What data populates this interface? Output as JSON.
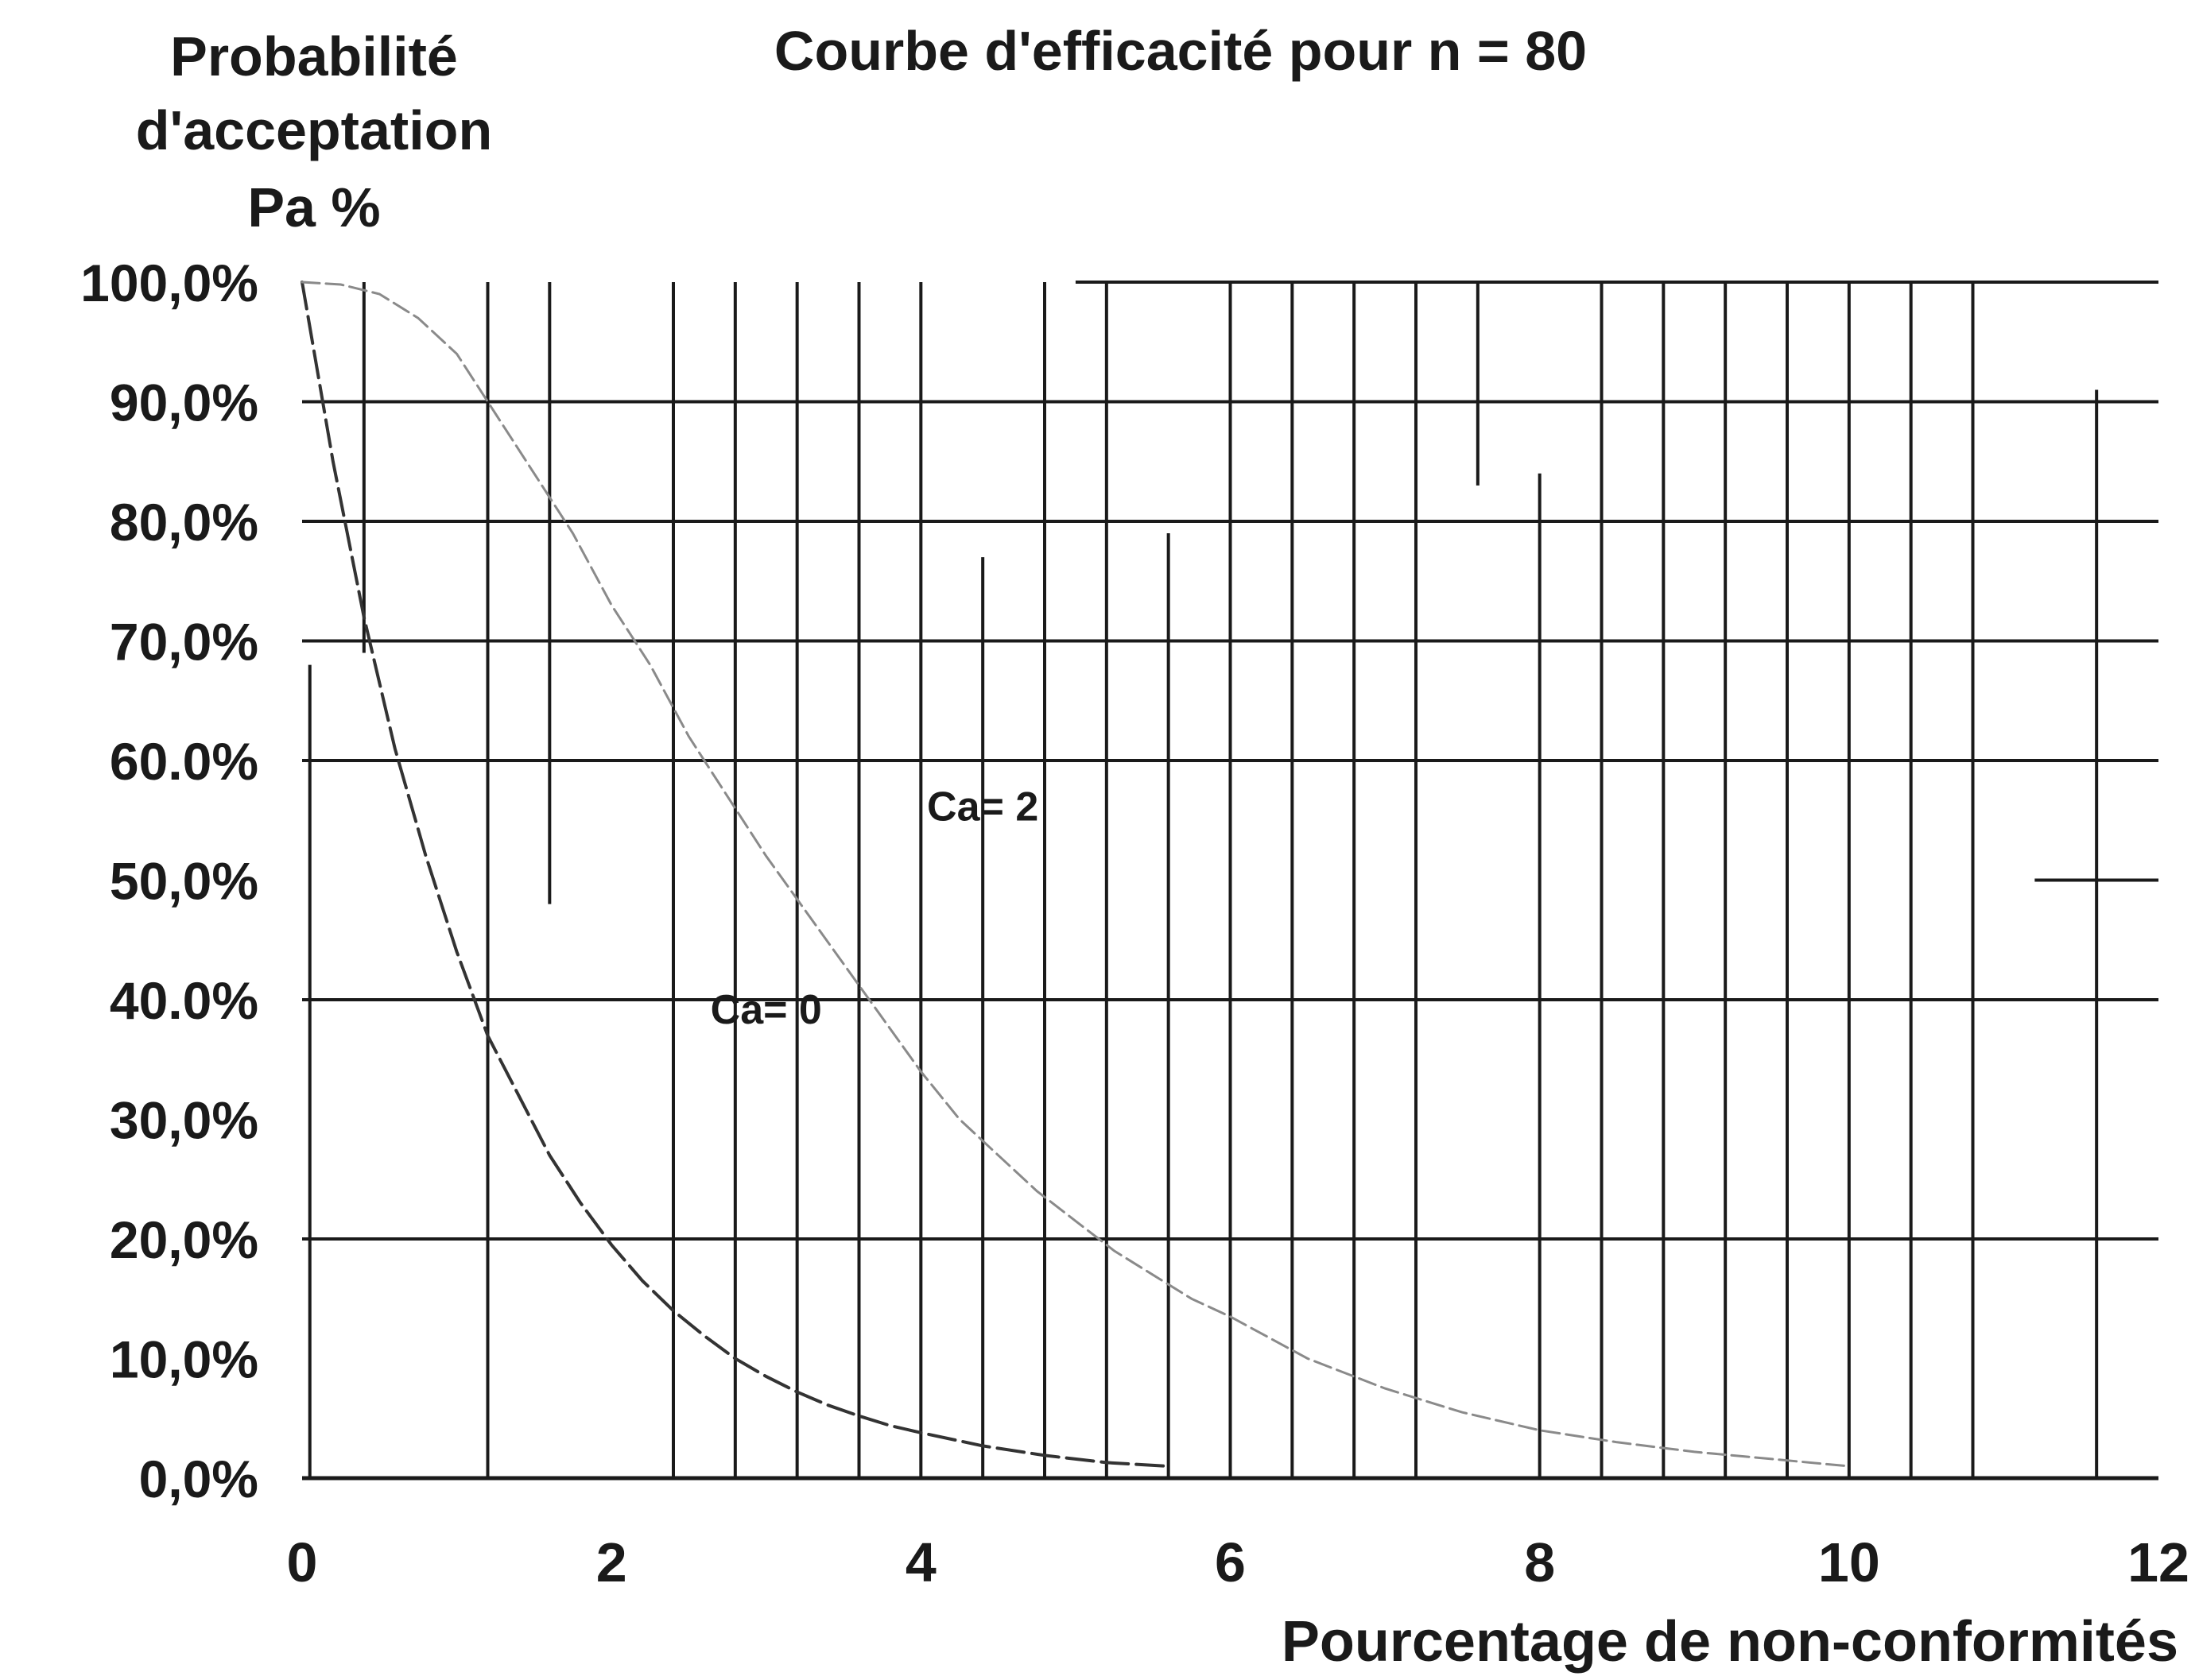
{
  "chart_data": {
    "type": "line",
    "title": "Courbe d'efficacité pour n = 80",
    "ylabel": [
      "Probabilité",
      "d'acceptation",
      "Pa %"
    ],
    "xlabel": "Pourcentage de non-conformités",
    "xlim": [
      0,
      12
    ],
    "ylim": [
      0,
      100
    ],
    "x_ticks": [
      0,
      2,
      4,
      6,
      8,
      10,
      12
    ],
    "x_tick_labels": [
      "0",
      "2",
      "4",
      "6",
      "8",
      "10",
      "12"
    ],
    "y_ticks": [
      0,
      10,
      20,
      30,
      40,
      50,
      60,
      70,
      80,
      90,
      100
    ],
    "y_tick_labels": [
      "0,0%",
      "10,0%",
      "20,0%",
      "30,0%",
      "40.0%",
      "50,0%",
      "60.0%",
      "70,0%",
      "80,0%",
      "90,0%",
      "100,0%"
    ],
    "grid": true,
    "vertical_gridlines": [
      {
        "x": 0.05,
        "y0": 0,
        "y1": 68
      },
      {
        "x": 0.4,
        "y0": 69,
        "y1": 100
      },
      {
        "x": 1.2,
        "y0": 0,
        "y1": 100
      },
      {
        "x": 1.6,
        "y0": 48,
        "y1": 100
      },
      {
        "x": 2.4,
        "y0": 0,
        "y1": 100
      },
      {
        "x": 2.8,
        "y0": 0,
        "y1": 100
      },
      {
        "x": 3.2,
        "y0": 0,
        "y1": 100
      },
      {
        "x": 3.6,
        "y0": 0,
        "y1": 100
      },
      {
        "x": 4.0,
        "y0": 0,
        "y1": 100
      },
      {
        "x": 4.4,
        "y0": 0,
        "y1": 77
      },
      {
        "x": 4.8,
        "y0": 0,
        "y1": 100
      },
      {
        "x": 5.2,
        "y0": 0,
        "y1": 100
      },
      {
        "x": 5.6,
        "y0": 0,
        "y1": 79
      },
      {
        "x": 6.0,
        "y0": 0,
        "y1": 100
      },
      {
        "x": 6.4,
        "y0": 0,
        "y1": 100
      },
      {
        "x": 6.8,
        "y0": 0,
        "y1": 100
      },
      {
        "x": 7.2,
        "y0": 0,
        "y1": 100
      },
      {
        "x": 7.6,
        "y0": 83,
        "y1": 100
      },
      {
        "x": 8.0,
        "y0": 0,
        "y1": 84
      },
      {
        "x": 8.4,
        "y0": 0,
        "y1": 100
      },
      {
        "x": 8.8,
        "y0": 0,
        "y1": 100
      },
      {
        "x": 9.2,
        "y0": 0,
        "y1": 100
      },
      {
        "x": 9.6,
        "y0": 0,
        "y1": 100
      },
      {
        "x": 10.0,
        "y0": 0,
        "y1": 100
      },
      {
        "x": 10.4,
        "y0": 0,
        "y1": 100
      },
      {
        "x": 10.8,
        "y0": 0,
        "y1": 100
      },
      {
        "x": 11.6,
        "y0": 0,
        "y1": 91
      }
    ],
    "horizontal_gridlines": [
      {
        "y": 0,
        "x0": 0,
        "x1": 12
      },
      {
        "y": 20,
        "x0": 0,
        "x1": 12
      },
      {
        "y": 40,
        "x0": 0,
        "x1": 12
      },
      {
        "y": 50,
        "x0": 11.2,
        "x1": 12
      },
      {
        "y": 60,
        "x0": 0,
        "x1": 12
      },
      {
        "y": 70,
        "x0": 0,
        "x1": 12
      },
      {
        "y": 80,
        "x0": 0,
        "x1": 12
      },
      {
        "y": 90,
        "x0": 0,
        "x1": 12
      },
      {
        "y": 100,
        "x0": 5,
        "x1": 12
      }
    ],
    "series": [
      {
        "name": "Ca = 0",
        "style": "dashed",
        "color": "#333333",
        "x": [
          0,
          0.2,
          0.4,
          0.6,
          0.8,
          1.0,
          1.2,
          1.4,
          1.6,
          1.8,
          2.0,
          2.2,
          2.4,
          2.6,
          2.8,
          3.0,
          3.2,
          3.4,
          3.6,
          3.8,
          4.0,
          4.4,
          4.8,
          5.2,
          5.6
        ],
        "values": [
          100,
          85,
          72,
          61,
          52,
          44,
          37,
          32,
          27,
          23,
          19.5,
          16.5,
          14,
          11.9,
          10,
          8.5,
          7.2,
          6.1,
          5.2,
          4.4,
          3.8,
          2.7,
          1.9,
          1.3,
          1.0
        ]
      },
      {
        "name": "Ca = 2",
        "style": "dashed-light",
        "color": "#8a8a8a",
        "x": [
          0,
          0.25,
          0.5,
          0.75,
          1.0,
          1.25,
          1.5,
          1.75,
          2.0,
          2.25,
          2.5,
          2.75,
          3.0,
          3.25,
          3.5,
          3.75,
          4.0,
          4.25,
          4.5,
          4.75,
          5.0,
          5.25,
          5.5,
          5.75,
          6.0,
          6.5,
          7.0,
          7.5,
          8.0,
          8.5,
          9.0,
          9.5,
          10.0
        ],
        "values": [
          100,
          99.8,
          99,
          97,
          94,
          89,
          84,
          79,
          73,
          68,
          62,
          57,
          52,
          47.5,
          43,
          38.5,
          34,
          30,
          27,
          24,
          21.5,
          19,
          17,
          15,
          13.5,
          10,
          7.5,
          5.5,
          4,
          3,
          2.2,
          1.6,
          1
        ]
      }
    ],
    "annotations": [
      {
        "text": "Ca= 2",
        "x": 4.4,
        "y": 55
      },
      {
        "text": "Ca= 0",
        "x": 3.0,
        "y": 38
      }
    ]
  }
}
